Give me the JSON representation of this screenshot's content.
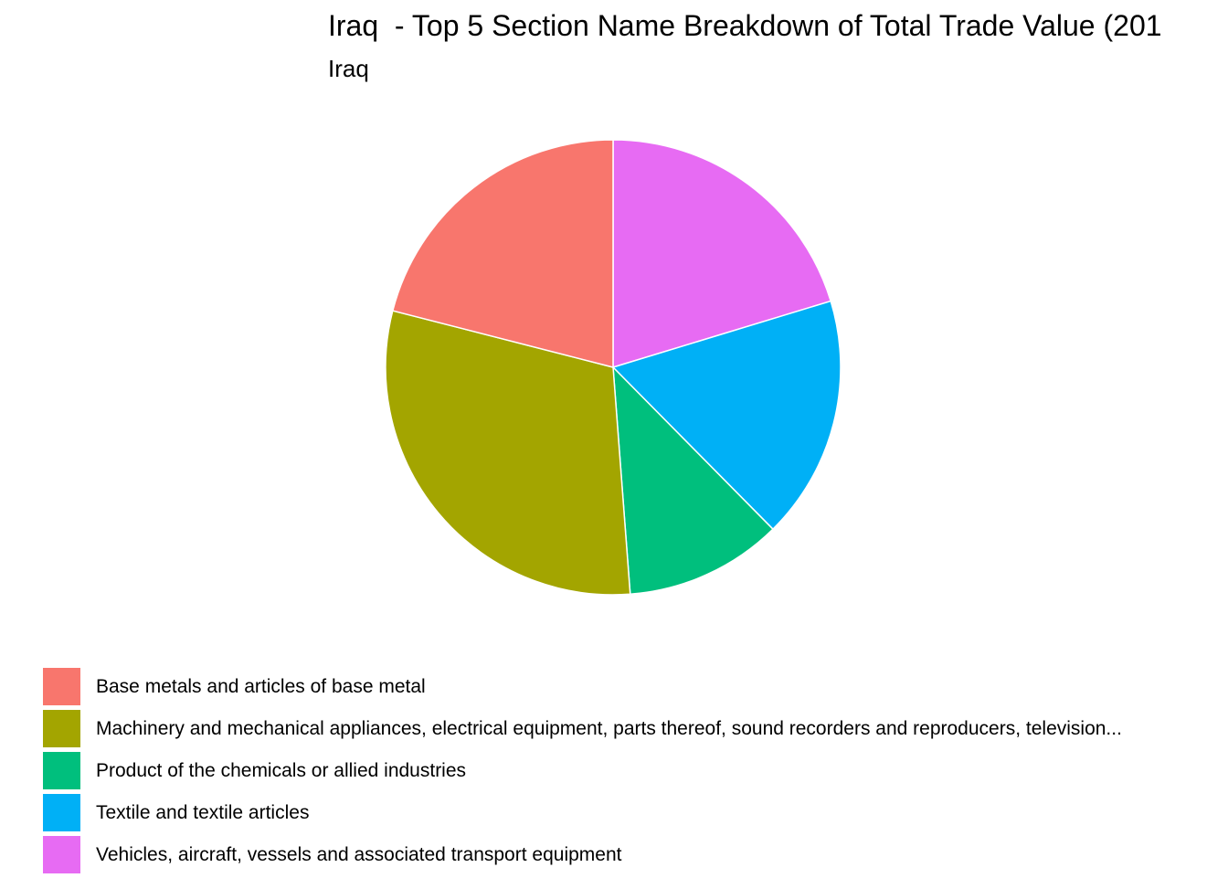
{
  "chart_data": {
    "type": "pie",
    "title": "Iraq  - Top 5 Section Name Breakdown of Total Trade Value (201",
    "subtitle": "Iraq",
    "slices": [
      {
        "label": "Vehicles, aircraft, vessels and associated transport equipment",
        "value": 20.3,
        "color": "#E76BF3"
      },
      {
        "label": "Textile and textile articles",
        "value": 17.3,
        "color": "#00B0F6"
      },
      {
        "label": "Product of the chemicals or allied industries",
        "value": 11.2,
        "color": "#00BF7D"
      },
      {
        "label": "Machinery and mechanical appliances, electrical equipment, parts thereof, sound recorders and reproducers, television...",
        "value": 30.2,
        "color": "#A3A500"
      },
      {
        "label": "Base metals and articles of base metal",
        "value": 21.0,
        "color": "#F8766D"
      }
    ],
    "slice_order": "clockwise from 12 o'clock",
    "legend_position": "bottom",
    "legend": [
      {
        "label": "Base metals and articles of base metal",
        "color": "#F8766D"
      },
      {
        "label": "Machinery and mechanical appliances, electrical equipment, parts thereof, sound recorders and reproducers, television...",
        "color": "#A3A500"
      },
      {
        "label": "Product of the chemicals or allied industries",
        "color": "#00BF7D"
      },
      {
        "label": "Textile and textile articles",
        "color": "#00B0F6"
      },
      {
        "label": "Vehicles, aircraft, vessels and associated transport equipment",
        "color": "#E76BF3"
      }
    ]
  }
}
